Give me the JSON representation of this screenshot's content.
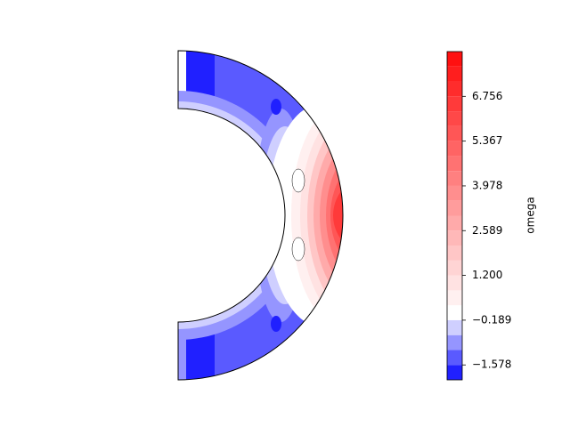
{
  "chart_data": {
    "type": "contour",
    "colorbar": {
      "label": "omega",
      "levels": [
        -2.041,
        -1.578,
        -1.115,
        -0.652,
        -0.189,
        0.274,
        0.737,
        1.2,
        1.663,
        2.126,
        2.589,
        3.052,
        3.515,
        3.978,
        4.441,
        4.904,
        5.367,
        5.83,
        6.293,
        6.756,
        7.219,
        7.682,
        8.145
      ],
      "colors": [
        "#2020ff",
        "#5a5aff",
        "#9595ff",
        "#cfcfff",
        "#ffffff",
        "#fff0f0",
        "#ffe2e2",
        "#ffd4d4",
        "#ffc6c6",
        "#ffb8b8",
        "#ffaaaa",
        "#ff9c9c",
        "#ff8e8e",
        "#ff8080",
        "#ff7272",
        "#ff6464",
        "#ff5656",
        "#ff4848",
        "#ff3a3a",
        "#ff2c2c",
        "#ff1e1e",
        "#ff1010"
      ],
      "ylim": [
        -2.041,
        8.145
      ],
      "yticks": [
        {
          "value": -1.578,
          "label": "−1.578"
        },
        {
          "value": -0.189,
          "label": "−0.189"
        },
        {
          "value": 1.2,
          "label": "1.200"
        },
        2.589,
        3.978,
        5.367,
        6.756
      ]
    }
  }
}
